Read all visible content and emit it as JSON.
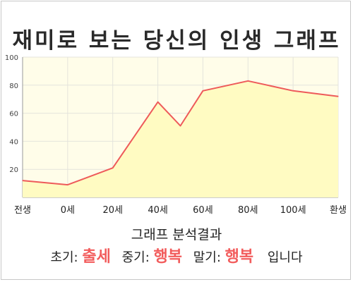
{
  "title": "재미로 보는 당신의 인생 그래프",
  "chart_data": {
    "type": "area",
    "x_labels": [
      "전생",
      "0세",
      "20세",
      "40세",
      "60세",
      "80세",
      "100세",
      "환생"
    ],
    "x": [
      -20,
      0,
      20,
      40,
      60,
      80,
      100,
      120
    ],
    "y_ticks": [
      20,
      40,
      60,
      80,
      100
    ],
    "ylim": [
      0,
      100
    ],
    "grid": true,
    "points": [
      {
        "x": -20,
        "y": 12
      },
      {
        "x": 0,
        "y": 9
      },
      {
        "x": 20,
        "y": 21
      },
      {
        "x": 40,
        "y": 68
      },
      {
        "x": 50,
        "y": 51
      },
      {
        "x": 60,
        "y": 76
      },
      {
        "x": 80,
        "y": 83
      },
      {
        "x": 100,
        "y": 76
      },
      {
        "x": 120,
        "y": 72
      }
    ],
    "colors": {
      "line": "#ee5a5a",
      "fill": "#fffbc2",
      "plot_bg": "#fffde9",
      "grid": "#e4e4dc"
    }
  },
  "analysis": {
    "heading": "그래프 분석결과",
    "early_label": "초기:",
    "early_value": "출세",
    "mid_label": "중기:",
    "mid_value": "행복",
    "late_label": "말기:",
    "late_value": "행복",
    "suffix": "입니다"
  }
}
